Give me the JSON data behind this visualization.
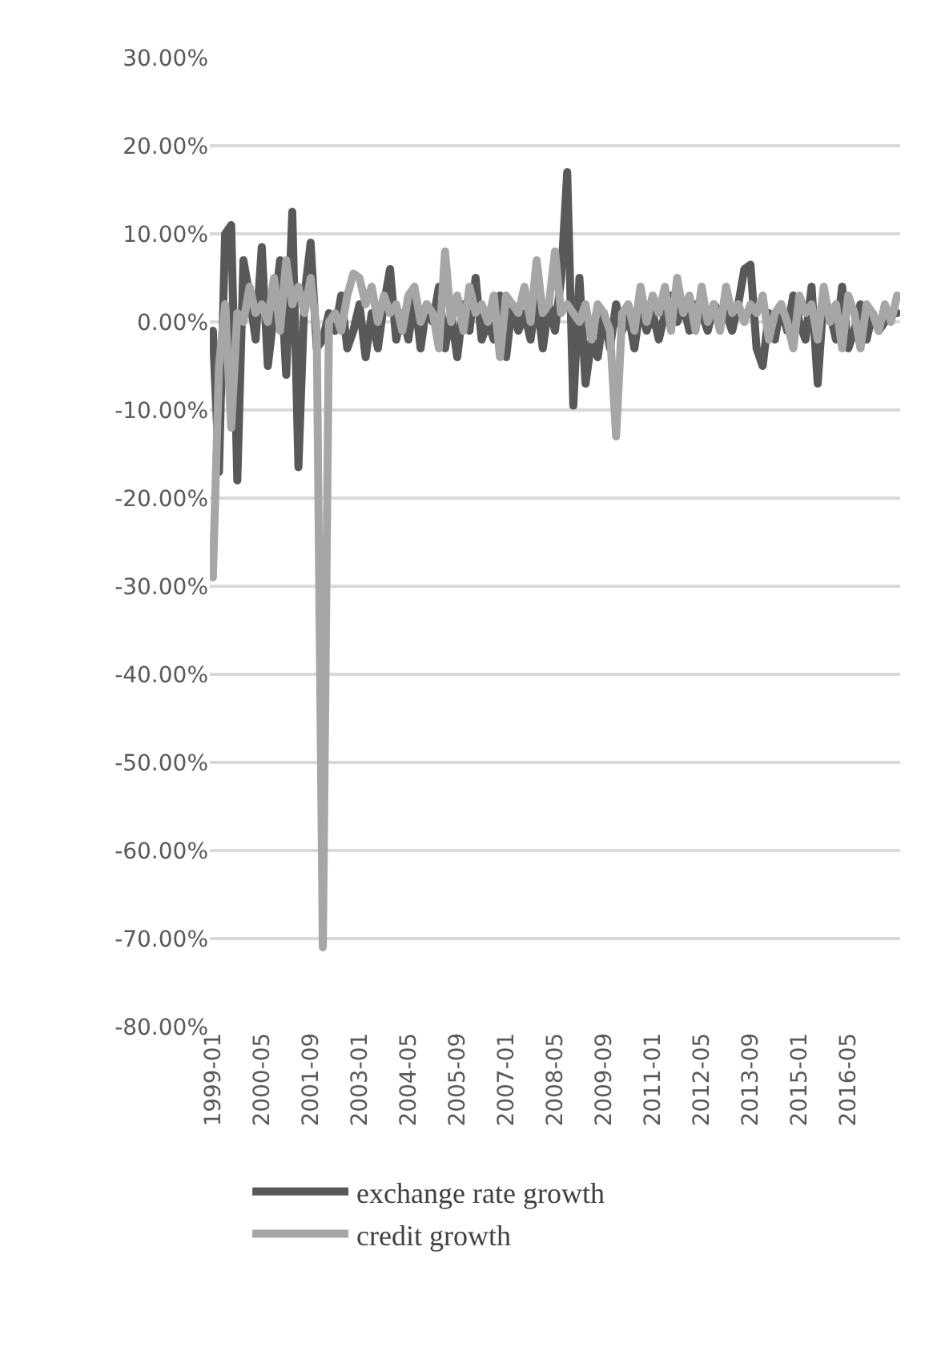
{
  "chart_data": {
    "type": "line",
    "categories": [
      "1999-01",
      null,
      null,
      null,
      null,
      null,
      null,
      null,
      "2000-05",
      null,
      null,
      null,
      null,
      null,
      null,
      null,
      "2001-09",
      null,
      null,
      null,
      null,
      null,
      null,
      null,
      "2003-01",
      null,
      null,
      null,
      null,
      null,
      null,
      null,
      "2004-05",
      null,
      null,
      null,
      null,
      null,
      null,
      null,
      "2005-09",
      null,
      null,
      null,
      null,
      null,
      null,
      null,
      "2007-01",
      null,
      null,
      null,
      null,
      null,
      null,
      null,
      "2008-05",
      null,
      null,
      null,
      null,
      null,
      null,
      null,
      "2009-09",
      null,
      null,
      null,
      null,
      null,
      null,
      null,
      "2011-01",
      null,
      null,
      null,
      null,
      null,
      null,
      null,
      "2012-05",
      null,
      null,
      null,
      null,
      null,
      null,
      null,
      "2013-09",
      null,
      null,
      null,
      null,
      null,
      null,
      null,
      "2015-01",
      null,
      null,
      null,
      null,
      null,
      null,
      null,
      "2016-05",
      null,
      null,
      null,
      null,
      null,
      null,
      null,
      null
    ],
    "series": [
      {
        "name": "exchange rate growth",
        "color": "#595959",
        "values": [
          -1,
          -17,
          10,
          11,
          -18,
          7,
          3,
          -2,
          8.5,
          -5,
          1,
          7,
          -6,
          12.5,
          -16.5,
          3,
          9,
          -3,
          -2,
          1,
          -1,
          3,
          -3,
          -1,
          2,
          -4,
          1,
          -3,
          2,
          6,
          -2,
          1,
          -2,
          3,
          -3,
          2,
          0,
          4,
          -3,
          1,
          -4,
          2,
          -1,
          5,
          -2,
          0,
          -2,
          3,
          -4,
          2,
          -1,
          1,
          -2,
          3,
          -3,
          2,
          -1,
          5,
          17,
          -9.5,
          5,
          -7,
          -2,
          -4,
          1,
          -3,
          2,
          -1,
          1,
          -3,
          2,
          -1,
          1,
          -2,
          1,
          3,
          0,
          2,
          -1,
          2,
          1,
          -1,
          2,
          1,
          1,
          -1,
          2,
          6,
          6.5,
          -3,
          -5,
          1,
          -2,
          2,
          -1,
          3,
          0,
          -2,
          4,
          -7,
          3,
          1,
          -2,
          4,
          -3,
          -1,
          2,
          -2,
          1,
          -1,
          0,
          1,
          1
        ]
      },
      {
        "name": "credit growth",
        "color": "#a6a6a6",
        "values": [
          -29,
          -5,
          2,
          -12,
          1,
          0,
          4,
          1,
          2,
          0,
          5,
          -1,
          7,
          2,
          4,
          1,
          5,
          -1,
          -71,
          0,
          1,
          -1,
          3,
          5.5,
          5,
          2,
          4,
          0,
          3,
          1,
          2,
          -1,
          3,
          4,
          0,
          2,
          1,
          -3,
          8,
          0,
          3,
          -1,
          4,
          1,
          2,
          0,
          3,
          -4,
          3,
          2,
          1,
          4,
          0,
          7,
          1,
          2,
          8,
          1,
          2,
          1,
          0,
          2,
          -2,
          2,
          1,
          -1,
          -13,
          1,
          2,
          -1,
          4,
          0,
          3,
          1,
          4,
          -1,
          5,
          1,
          3,
          -1,
          4,
          0,
          2,
          -1,
          4,
          1,
          2,
          0,
          2,
          1,
          3,
          -2,
          1,
          2,
          0,
          -3,
          3,
          1,
          2,
          -2,
          4,
          0,
          2,
          -3,
          3,
          1,
          -3,
          2,
          1,
          -1,
          2,
          0,
          3
        ]
      }
    ],
    "ylim": [
      -80,
      30
    ],
    "yticks": [
      {
        "value": -80,
        "label": "-80.00%"
      },
      {
        "value": -70,
        "label": "-70.00%"
      },
      {
        "value": -60,
        "label": "-60.00%"
      },
      {
        "value": -50,
        "label": "-50.00%"
      },
      {
        "value": -40,
        "label": "-40.00%"
      },
      {
        "value": -30,
        "label": "-30.00%"
      },
      {
        "value": -20,
        "label": "-20.00%"
      },
      {
        "value": -10,
        "label": "-10.00%"
      },
      {
        "value": 0,
        "label": "0.00%"
      },
      {
        "value": 10,
        "label": "10.00%"
      },
      {
        "value": 20,
        "label": "20.00%"
      },
      {
        "value": 30,
        "label": "30.00%"
      }
    ],
    "grid": "y",
    "legend": "bottom",
    "marker": "none",
    "line_style": "solid"
  }
}
